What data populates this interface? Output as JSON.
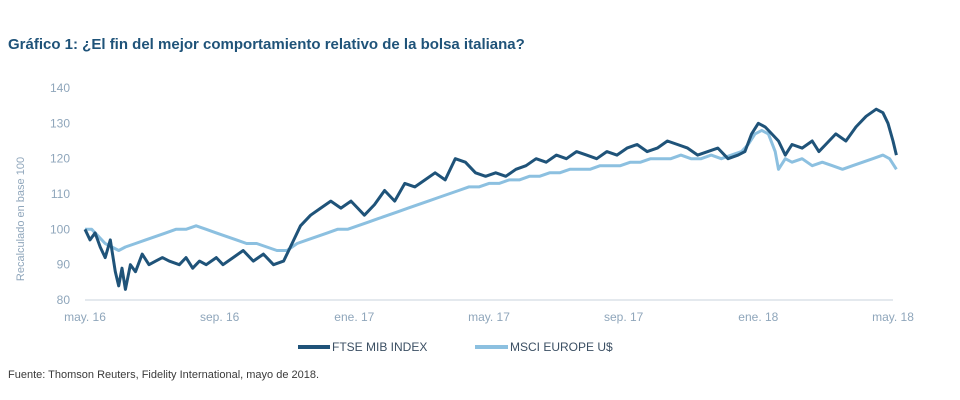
{
  "title": "Gráfico 1: ¿El fin del mejor comportamiento relativo de la bolsa italiana?",
  "source": "Fuente: Thomson Reuters, Fidelity International, mayo de 2018.",
  "chart_data": {
    "type": "line",
    "title": "Gráfico 1: ¿El fin del mejor comportamiento relativo de la bolsa italiana?",
    "ylabel": "Recalculado en base 100",
    "xlabel": "",
    "ylim": [
      80,
      140
    ],
    "yticks": [
      80,
      90,
      100,
      110,
      120,
      130,
      140
    ],
    "xticks": [
      {
        "label": "may. 16",
        "x": 0
      },
      {
        "label": "sep. 16",
        "x": 4
      },
      {
        "label": "ene. 17",
        "x": 8
      },
      {
        "label": "may. 17",
        "x": 12
      },
      {
        "label": "sep. 17",
        "x": 16
      },
      {
        "label": "ene. 18",
        "x": 20
      },
      {
        "label": "may. 18",
        "x": 24
      }
    ],
    "x_unit": "months since may. 16",
    "grid": false,
    "legend": "bottom-center",
    "series": [
      {
        "name": "FTSE MIB INDEX",
        "color": "#1f5379",
        "points": [
          [
            0,
            100
          ],
          [
            0.15,
            97
          ],
          [
            0.3,
            99
          ],
          [
            0.45,
            95
          ],
          [
            0.6,
            92
          ],
          [
            0.75,
            97
          ],
          [
            0.9,
            88
          ],
          [
            1.0,
            84
          ],
          [
            1.1,
            89
          ],
          [
            1.2,
            83
          ],
          [
            1.35,
            90
          ],
          [
            1.5,
            88
          ],
          [
            1.7,
            93
          ],
          [
            1.9,
            90
          ],
          [
            2.1,
            91
          ],
          [
            2.3,
            92
          ],
          [
            2.5,
            91
          ],
          [
            2.8,
            90
          ],
          [
            3.0,
            92
          ],
          [
            3.2,
            89
          ],
          [
            3.4,
            91
          ],
          [
            3.6,
            90
          ],
          [
            3.9,
            92
          ],
          [
            4.1,
            90
          ],
          [
            4.4,
            92
          ],
          [
            4.7,
            94
          ],
          [
            5.0,
            91
          ],
          [
            5.3,
            93
          ],
          [
            5.6,
            90
          ],
          [
            5.9,
            91
          ],
          [
            6.1,
            95
          ],
          [
            6.4,
            101
          ],
          [
            6.7,
            104
          ],
          [
            7.0,
            106
          ],
          [
            7.3,
            108
          ],
          [
            7.6,
            106
          ],
          [
            7.9,
            108
          ],
          [
            8.1,
            106
          ],
          [
            8.3,
            104
          ],
          [
            8.6,
            107
          ],
          [
            8.9,
            111
          ],
          [
            9.2,
            108
          ],
          [
            9.5,
            113
          ],
          [
            9.8,
            112
          ],
          [
            10.1,
            114
          ],
          [
            10.4,
            116
          ],
          [
            10.7,
            114
          ],
          [
            11.0,
            120
          ],
          [
            11.3,
            119
          ],
          [
            11.6,
            116
          ],
          [
            11.9,
            115
          ],
          [
            12.2,
            116
          ],
          [
            12.5,
            115
          ],
          [
            12.8,
            117
          ],
          [
            13.1,
            118
          ],
          [
            13.4,
            120
          ],
          [
            13.7,
            119
          ],
          [
            14.0,
            121
          ],
          [
            14.3,
            120
          ],
          [
            14.6,
            122
          ],
          [
            14.9,
            121
          ],
          [
            15.2,
            120
          ],
          [
            15.5,
            122
          ],
          [
            15.8,
            121
          ],
          [
            16.1,
            123
          ],
          [
            16.4,
            124
          ],
          [
            16.7,
            122
          ],
          [
            17.0,
            123
          ],
          [
            17.3,
            125
          ],
          [
            17.6,
            124
          ],
          [
            17.9,
            123
          ],
          [
            18.2,
            121
          ],
          [
            18.5,
            122
          ],
          [
            18.8,
            123
          ],
          [
            19.1,
            120
          ],
          [
            19.4,
            121
          ],
          [
            19.6,
            122
          ],
          [
            19.8,
            127
          ],
          [
            20.0,
            130
          ],
          [
            20.2,
            129
          ],
          [
            20.4,
            127
          ],
          [
            20.6,
            125
          ],
          [
            20.8,
            121
          ],
          [
            21.0,
            124
          ],
          [
            21.3,
            123
          ],
          [
            21.6,
            125
          ],
          [
            21.8,
            122
          ],
          [
            22.0,
            124
          ],
          [
            22.3,
            127
          ],
          [
            22.6,
            125
          ],
          [
            22.9,
            129
          ],
          [
            23.2,
            132
          ],
          [
            23.5,
            134
          ],
          [
            23.7,
            133
          ],
          [
            23.85,
            130
          ],
          [
            24.0,
            125
          ],
          [
            24.1,
            121
          ]
        ]
      },
      {
        "name": "MSCI EUROPE U$",
        "color": "#8cc0e0",
        "points": [
          [
            0,
            100
          ],
          [
            0.2,
            100
          ],
          [
            0.4,
            98
          ],
          [
            0.6,
            96
          ],
          [
            0.8,
            95
          ],
          [
            1.0,
            94
          ],
          [
            1.2,
            95
          ],
          [
            1.5,
            96
          ],
          [
            1.8,
            97
          ],
          [
            2.1,
            98
          ],
          [
            2.4,
            99
          ],
          [
            2.7,
            100
          ],
          [
            3.0,
            100
          ],
          [
            3.3,
            101
          ],
          [
            3.6,
            100
          ],
          [
            3.9,
            99
          ],
          [
            4.2,
            98
          ],
          [
            4.5,
            97
          ],
          [
            4.8,
            96
          ],
          [
            5.1,
            96
          ],
          [
            5.4,
            95
          ],
          [
            5.7,
            94
          ],
          [
            6.0,
            94
          ],
          [
            6.3,
            96
          ],
          [
            6.6,
            97
          ],
          [
            6.9,
            98
          ],
          [
            7.2,
            99
          ],
          [
            7.5,
            100
          ],
          [
            7.8,
            100
          ],
          [
            8.1,
            101
          ],
          [
            8.4,
            102
          ],
          [
            8.7,
            103
          ],
          [
            9.0,
            104
          ],
          [
            9.3,
            105
          ],
          [
            9.6,
            106
          ],
          [
            9.9,
            107
          ],
          [
            10.2,
            108
          ],
          [
            10.5,
            109
          ],
          [
            10.8,
            110
          ],
          [
            11.1,
            111
          ],
          [
            11.4,
            112
          ],
          [
            11.7,
            112
          ],
          [
            12.0,
            113
          ],
          [
            12.3,
            113
          ],
          [
            12.6,
            114
          ],
          [
            12.9,
            114
          ],
          [
            13.2,
            115
          ],
          [
            13.5,
            115
          ],
          [
            13.8,
            116
          ],
          [
            14.1,
            116
          ],
          [
            14.4,
            117
          ],
          [
            14.7,
            117
          ],
          [
            15.0,
            117
          ],
          [
            15.3,
            118
          ],
          [
            15.6,
            118
          ],
          [
            15.9,
            118
          ],
          [
            16.2,
            119
          ],
          [
            16.5,
            119
          ],
          [
            16.8,
            120
          ],
          [
            17.1,
            120
          ],
          [
            17.4,
            120
          ],
          [
            17.7,
            121
          ],
          [
            18.0,
            120
          ],
          [
            18.3,
            120
          ],
          [
            18.6,
            121
          ],
          [
            18.9,
            120
          ],
          [
            19.2,
            121
          ],
          [
            19.5,
            122
          ],
          [
            19.7,
            124
          ],
          [
            19.9,
            127
          ],
          [
            20.1,
            128
          ],
          [
            20.3,
            127
          ],
          [
            20.5,
            122
          ],
          [
            20.6,
            117
          ],
          [
            20.8,
            120
          ],
          [
            21.0,
            119
          ],
          [
            21.3,
            120
          ],
          [
            21.6,
            118
          ],
          [
            21.9,
            119
          ],
          [
            22.2,
            118
          ],
          [
            22.5,
            117
          ],
          [
            22.8,
            118
          ],
          [
            23.1,
            119
          ],
          [
            23.4,
            120
          ],
          [
            23.7,
            121
          ],
          [
            23.9,
            120
          ],
          [
            24.1,
            117
          ]
        ]
      }
    ]
  }
}
